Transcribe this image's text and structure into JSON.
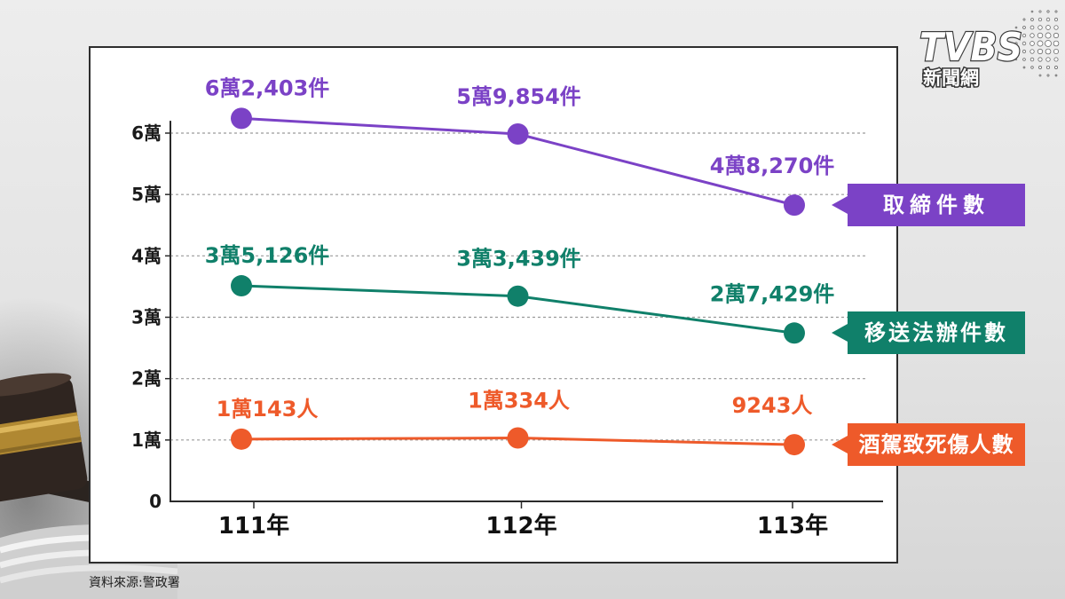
{
  "logo": {
    "brand": "TVBS",
    "subtitle": "新聞網"
  },
  "source": "資料來源:警政署",
  "chart_data": {
    "type": "line",
    "categories": [
      "111年",
      "112年",
      "113年"
    ],
    "y_ticks": [
      {
        "value": 0,
        "label": "0"
      },
      {
        "value": 10000,
        "label": "1萬"
      },
      {
        "value": 20000,
        "label": "2萬"
      },
      {
        "value": 30000,
        "label": "3萬"
      },
      {
        "value": 40000,
        "label": "4萬"
      },
      {
        "value": 50000,
        "label": "5萬"
      },
      {
        "value": 60000,
        "label": "6萬"
      }
    ],
    "ylim": [
      0,
      62000
    ],
    "grid": true,
    "legend_position": "right",
    "series": [
      {
        "name": "取締件數",
        "color": "#7B42C6",
        "values": [
          62403,
          59854,
          48270
        ],
        "data_labels": [
          "6萬2,403件",
          "5萬9,854件",
          "4萬8,270件"
        ]
      },
      {
        "name": "移送法辦件數",
        "color": "#10806A",
        "values": [
          35126,
          33439,
          27429
        ],
        "data_labels": [
          "3萬5,126件",
          "3萬3,439件",
          "2萬7,429件"
        ]
      },
      {
        "name": "酒駕致死傷人數",
        "color": "#EE5A2A",
        "values": [
          10143,
          10334,
          9243
        ],
        "data_labels": [
          "1萬143人",
          "1萬334人",
          "9243人"
        ]
      }
    ]
  }
}
